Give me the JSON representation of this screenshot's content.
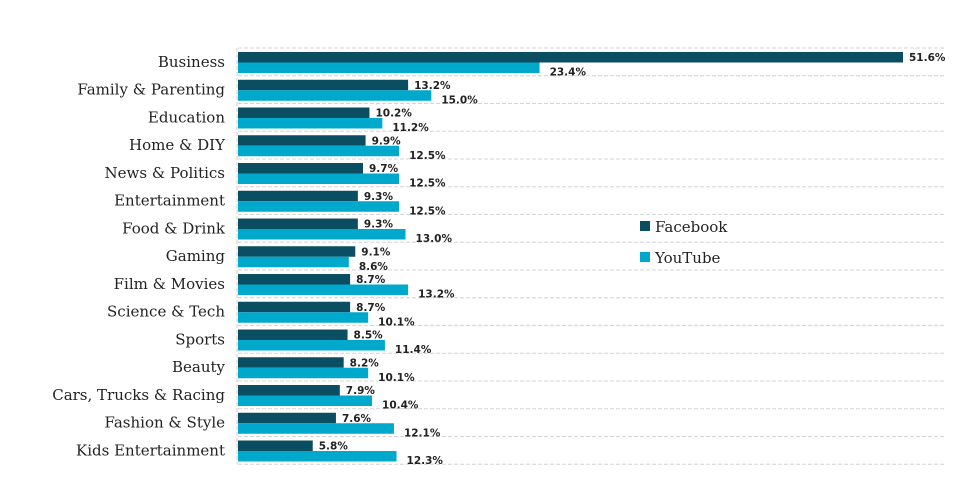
{
  "chart_data": {
    "type": "bar",
    "orientation": "horizontal",
    "categories": [
      "Business",
      "Family & Parenting",
      "Education",
      "Home & DIY",
      "News & Politics",
      "Entertainment",
      "Food & Drink",
      "Gaming",
      "Film & Movies",
      "Science & Tech",
      "Sports",
      "Beauty",
      "Cars, Trucks & Racing",
      "Fashion & Style",
      "Kids Entertainment"
    ],
    "series": [
      {
        "name": "Facebook",
        "color": "#0b4d61",
        "values": [
          51.6,
          13.2,
          10.2,
          9.9,
          9.7,
          9.3,
          9.3,
          9.1,
          8.7,
          8.7,
          8.5,
          8.2,
          7.9,
          7.6,
          5.8
        ]
      },
      {
        "name": "YouTube",
        "color": "#00a8cc",
        "values": [
          23.4,
          15.0,
          11.2,
          12.5,
          12.5,
          12.5,
          13.0,
          8.6,
          13.2,
          10.1,
          11.4,
          10.1,
          10.4,
          12.1,
          12.3
        ]
      }
    ],
    "value_format": "percent_1dp",
    "xlim": [
      0,
      54
    ],
    "grid": "horizontal dashed",
    "legend_position": "center-right"
  }
}
